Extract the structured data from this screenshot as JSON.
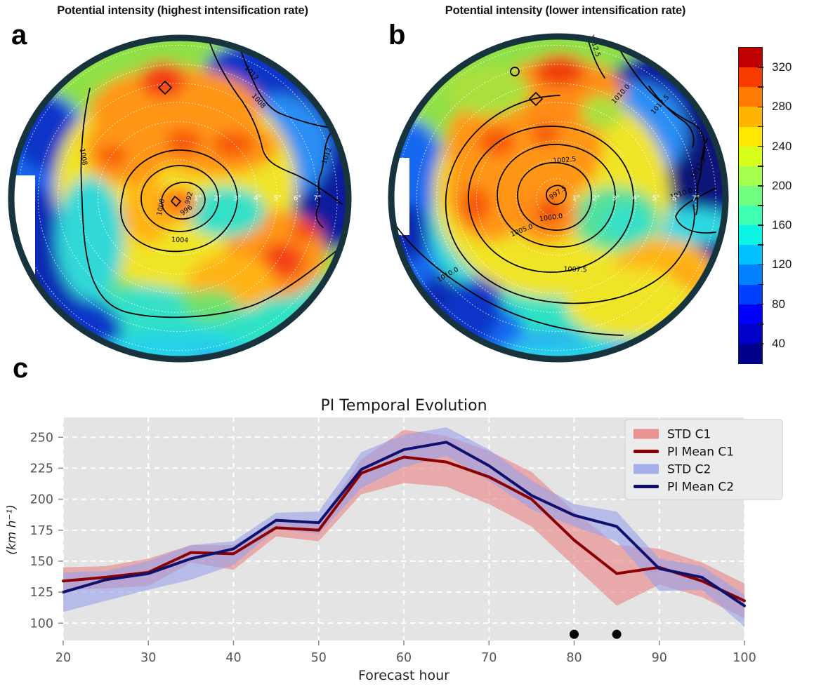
{
  "figure": {
    "panel_labels": [
      "a",
      "b",
      "c"
    ]
  },
  "colorbar": {
    "min": 20,
    "max": 340,
    "labeled_ticks": [
      40,
      80,
      120,
      160,
      200,
      240,
      280,
      320
    ],
    "minor_tick_step": 20,
    "band_colors_bottom_to_top": [
      "#00008c",
      "#0000c8",
      "#0000fe",
      "#0041ff",
      "#0081ff",
      "#00c0ff",
      "#0cf4e4",
      "#3fffb3",
      "#72ff80",
      "#a5ff4d",
      "#d8ff1a",
      "#fee800",
      "#ffb400",
      "#ff7c00",
      "#f83c00",
      "#c00000"
    ]
  },
  "chart_data": [
    {
      "type": "contour_polar",
      "panel": "a",
      "title": "Potential intensity (highest intensification rate)",
      "colormap": "jet",
      "color_range": [
        20,
        340
      ],
      "radial_ring_labels": [
        "1°",
        "2°",
        "3°",
        "4°",
        "5°",
        "6°",
        "7°"
      ],
      "contour_labels": {
        "c992": "992",
        "c996": "996",
        "c1000": "1000",
        "c1004": "1004",
        "c1008_left": "1008",
        "c1008_ne": "1008",
        "c1012_ne": "1012",
        "c1012_right": "1012"
      }
    },
    {
      "type": "contour_polar",
      "panel": "b",
      "title": "Potential intensity (lower intensification rate)",
      "colormap": "jet",
      "color_range": [
        20,
        340
      ],
      "radial_ring_labels": [
        "1°",
        "2°",
        "3°",
        "4°",
        "5°",
        "6°",
        "7°"
      ],
      "contour_labels": {
        "c9975": "997.5",
        "c1000": "1000.0",
        "c10025": "1002.5",
        "c1005": "1005.0",
        "c10075": "1007.5",
        "c1010_bl": "1010.0",
        "c1010_ne": "1010.0",
        "c1010_right": "1010.0",
        "c10125_top": "1012.5",
        "c10125_ne": "1012.5",
        "c10125_right": "1012.5"
      }
    },
    {
      "type": "line",
      "title": "PI Temporal Evolution",
      "xlabel": "Forecast hour",
      "ylabel": "(km h⁻¹)",
      "xlim": [
        20,
        100
      ],
      "ylim": [
        86,
        266
      ],
      "xticks": [
        20,
        30,
        40,
        50,
        60,
        70,
        80,
        90,
        100
      ],
      "yticks": [
        100,
        125,
        150,
        175,
        200,
        225,
        250
      ],
      "background": "#e4e4e4",
      "grid_color": "#ffffff",
      "x": [
        20,
        25,
        30,
        35,
        40,
        45,
        50,
        55,
        60,
        65,
        70,
        75,
        80,
        85,
        90,
        95,
        100
      ],
      "series": [
        {
          "name": "PI Mean C1",
          "color": "#8b0000",
          "values": [
            134,
            137,
            141,
            157,
            156,
            177,
            175,
            221,
            234,
            230,
            218,
            200,
            167,
            140,
            145,
            134,
            118
          ]
        },
        {
          "name": "PI Mean C2",
          "color": "#10106e",
          "values": [
            125,
            135,
            140,
            152,
            160,
            183,
            181,
            224,
            240,
            246,
            227,
            203,
            187,
            178,
            144,
            137,
            114
          ]
        }
      ],
      "bands": [
        {
          "name": "STD C1",
          "color": "#e88484",
          "upper": [
            145,
            146,
            152,
            163,
            163,
            182,
            181,
            232,
            256,
            251,
            239,
            222,
            190,
            163,
            160,
            149,
            132
          ],
          "lower": [
            127,
            128,
            130,
            149,
            143,
            170,
            166,
            204,
            213,
            210,
            196,
            178,
            146,
            114,
            131,
            121,
            104
          ]
        },
        {
          "name": "STD C2",
          "color": "#99a2ea",
          "upper": [
            141,
            142,
            150,
            163,
            166,
            189,
            190,
            238,
            252,
            258,
            240,
            215,
            196,
            190,
            152,
            146,
            123
          ],
          "lower": [
            109,
            118,
            127,
            135,
            147,
            176,
            172,
            209,
            226,
            235,
            215,
            192,
            178,
            166,
            126,
            127,
            97
          ]
        }
      ],
      "legend": [
        {
          "label": "STD C1",
          "type": "band",
          "color": "#e88484"
        },
        {
          "label": "PI Mean C1",
          "type": "line",
          "color": "#8b0000"
        },
        {
          "label": "STD C2",
          "type": "band",
          "color": "#99a2ea"
        },
        {
          "label": "PI Mean C2",
          "type": "line",
          "color": "#10106e"
        }
      ],
      "marker_dots": {
        "x": [
          80,
          85
        ],
        "y": 91,
        "color": "#000000"
      }
    }
  ]
}
